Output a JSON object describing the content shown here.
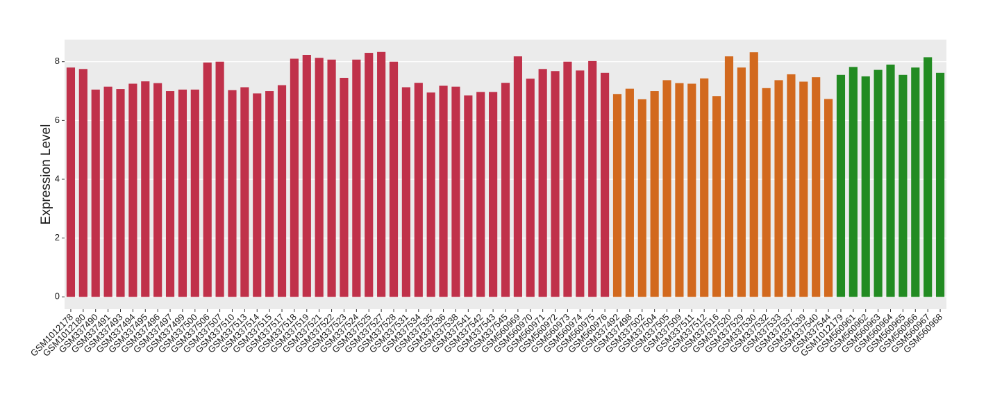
{
  "chart_data": {
    "type": "bar",
    "y_label": "Expression Level",
    "categories": [
      "GSM1012178",
      "GSM1012180",
      "GSM337490",
      "GSM337491",
      "GSM337493",
      "GSM337494",
      "GSM337495",
      "GSM337496",
      "GSM337497",
      "GSM337499",
      "GSM337500",
      "GSM337506",
      "GSM337507",
      "GSM337510",
      "GSM337513",
      "GSM337514",
      "GSM337515",
      "GSM337517",
      "GSM337518",
      "GSM337519",
      "GSM337521",
      "GSM337522",
      "GSM337523",
      "GSM337524",
      "GSM337525",
      "GSM337527",
      "GSM337528",
      "GSM337531",
      "GSM337534",
      "GSM337535",
      "GSM337536",
      "GSM337538",
      "GSM337541",
      "GSM337542",
      "GSM337543",
      "GSM337545",
      "GSM560969",
      "GSM560970",
      "GSM560971",
      "GSM560972",
      "GSM560973",
      "GSM560974",
      "GSM560975",
      "GSM560976",
      "GSM337492",
      "GSM337498",
      "GSM337502",
      "GSM337504",
      "GSM337505",
      "GSM337509",
      "GSM337511",
      "GSM337512",
      "GSM337516",
      "GSM337520",
      "GSM337529",
      "GSM337530",
      "GSM337532",
      "GSM337533",
      "GSM337537",
      "GSM337539",
      "GSM337540",
      "GSM337544",
      "GSM1012179",
      "GSM560961",
      "GSM560962",
      "GSM560963",
      "GSM560964",
      "GSM560965",
      "GSM560966",
      "GSM560967",
      "GSM560968"
    ],
    "values": [
      7.8,
      7.75,
      7.05,
      7.15,
      7.07,
      7.25,
      7.33,
      7.27,
      7.0,
      7.05,
      7.05,
      7.97,
      8.0,
      7.03,
      7.13,
      6.92,
      7.0,
      7.2,
      8.1,
      8.23,
      8.13,
      8.07,
      7.45,
      8.07,
      8.3,
      8.33,
      8.0,
      7.13,
      7.28,
      6.95,
      7.18,
      7.15,
      6.85,
      6.97,
      6.97,
      7.28,
      8.18,
      7.42,
      7.75,
      7.68,
      8.0,
      7.7,
      8.02,
      7.62,
      6.9,
      7.08,
      6.72,
      7.0,
      7.37,
      7.27,
      7.25,
      7.43,
      6.83,
      8.18,
      7.8,
      8.32,
      7.1,
      7.37,
      7.57,
      7.32,
      7.47,
      6.73,
      7.55,
      7.82,
      7.5,
      7.72,
      7.9,
      7.55,
      7.8,
      8.15,
      7.62
    ],
    "colors": [
      "#c0314a",
      "#c0314a",
      "#c0314a",
      "#c0314a",
      "#c0314a",
      "#c0314a",
      "#c0314a",
      "#c0314a",
      "#c0314a",
      "#c0314a",
      "#c0314a",
      "#c0314a",
      "#c0314a",
      "#c0314a",
      "#c0314a",
      "#c0314a",
      "#c0314a",
      "#c0314a",
      "#c0314a",
      "#c0314a",
      "#c0314a",
      "#c0314a",
      "#c0314a",
      "#c0314a",
      "#c0314a",
      "#c0314a",
      "#c0314a",
      "#c0314a",
      "#c0314a",
      "#c0314a",
      "#c0314a",
      "#c0314a",
      "#c0314a",
      "#c0314a",
      "#c0314a",
      "#c0314a",
      "#c0314a",
      "#c0314a",
      "#c0314a",
      "#c0314a",
      "#c0314a",
      "#c0314a",
      "#c0314a",
      "#c0314a",
      "#d2691e",
      "#d2691e",
      "#d2691e",
      "#d2691e",
      "#d2691e",
      "#d2691e",
      "#d2691e",
      "#d2691e",
      "#d2691e",
      "#d2691e",
      "#d2691e",
      "#d2691e",
      "#d2691e",
      "#d2691e",
      "#d2691e",
      "#d2691e",
      "#d2691e",
      "#d2691e",
      "#228b22",
      "#228b22",
      "#228b22",
      "#228b22",
      "#228b22",
      "#228b22",
      "#228b22",
      "#228b22",
      "#228b22"
    ],
    "ylim": [
      -0.42,
      8.75
    ],
    "yticks": [
      0,
      2,
      4,
      6,
      8
    ],
    "grid": true,
    "background": "#ebebeb"
  }
}
